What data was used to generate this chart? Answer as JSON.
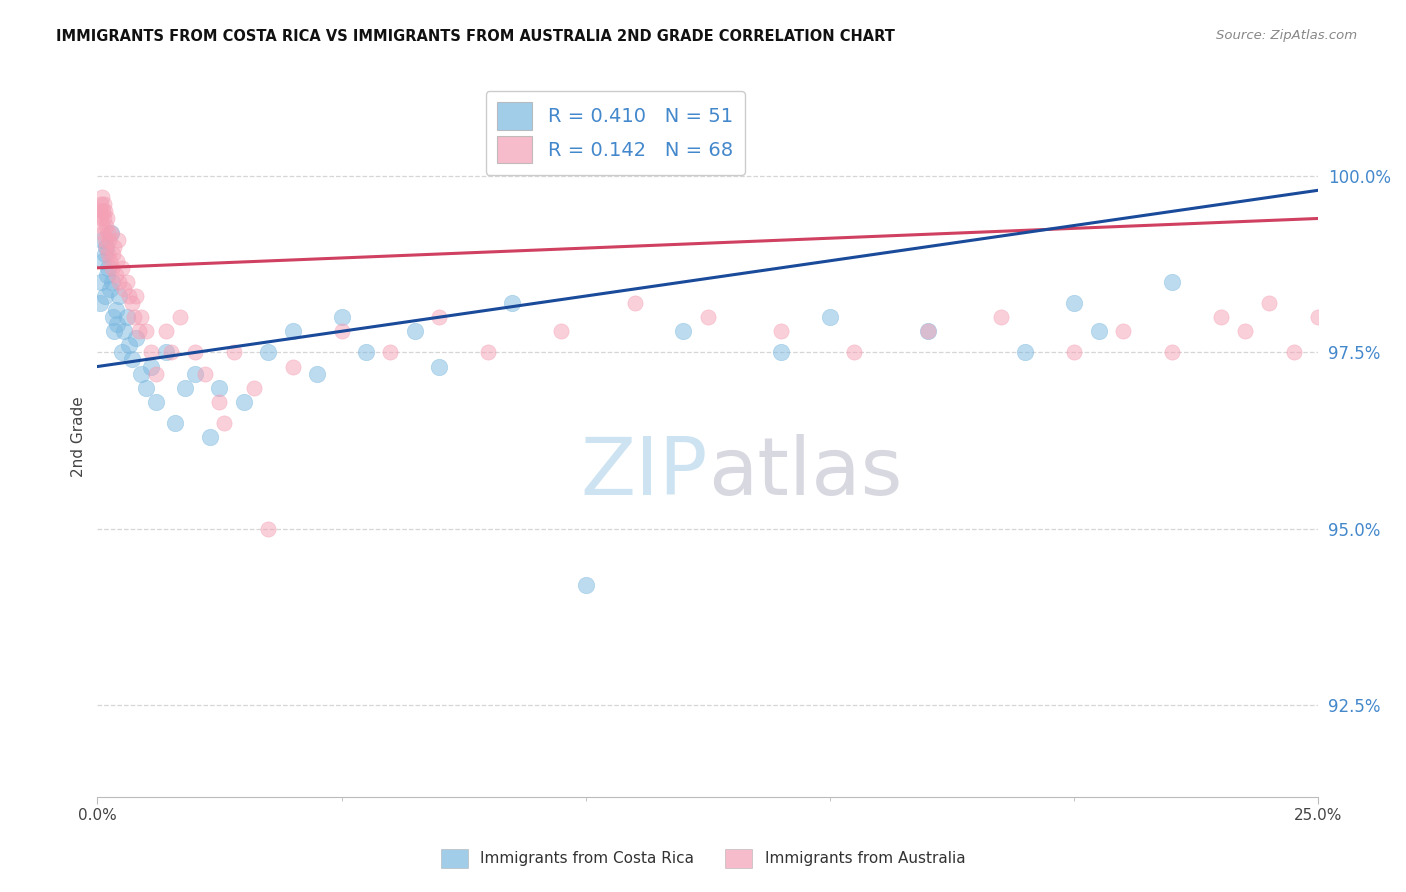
{
  "title": "IMMIGRANTS FROM COSTA RICA VS IMMIGRANTS FROM AUSTRALIA 2ND GRADE CORRELATION CHART",
  "source": "Source: ZipAtlas.com",
  "ylabel": "2nd Grade",
  "yticks": [
    92.5,
    95.0,
    97.5,
    100.0
  ],
  "ytick_labels": [
    "92.5%",
    "95.0%",
    "97.5%",
    "100.0%"
  ],
  "xmin": 0.0,
  "xmax": 25.0,
  "ymin": 91.2,
  "ymax": 101.4,
  "legend_r_blue": "R = 0.410",
  "legend_n_blue": "N = 51",
  "legend_r_pink": "R = 0.142",
  "legend_n_pink": "N = 68",
  "legend_label_blue": "Immigrants from Costa Rica",
  "legend_label_pink": "Immigrants from Australia",
  "blue_color": "#7ab8e0",
  "pink_color": "#f4a0b5",
  "trendline_blue": "#1a4a9a",
  "trendline_pink": "#d04060",
  "axis_label_color": "#4488cc",
  "title_color": "#111111",
  "source_color": "#888888",
  "grid_color": "#cccccc",
  "cr_x": [
    0.05,
    0.08,
    0.1,
    0.12,
    0.15,
    0.15,
    0.18,
    0.2,
    0.22,
    0.25,
    0.28,
    0.3,
    0.32,
    0.35,
    0.38,
    0.4,
    0.45,
    0.5,
    0.55,
    0.6,
    0.65,
    0.7,
    0.8,
    0.9,
    1.0,
    1.1,
    1.2,
    1.4,
    1.6,
    1.8,
    2.0,
    2.3,
    2.5,
    3.0,
    3.5,
    4.0,
    4.5,
    5.0,
    5.5,
    6.5,
    7.0,
    8.5,
    10.0,
    12.0,
    14.0,
    15.0,
    17.0,
    19.0,
    20.0,
    20.5,
    22.0
  ],
  "cr_y": [
    98.2,
    98.5,
    99.1,
    98.8,
    98.9,
    98.3,
    99.0,
    98.6,
    98.7,
    98.4,
    99.2,
    98.5,
    98.0,
    97.8,
    98.1,
    97.9,
    98.3,
    97.5,
    97.8,
    98.0,
    97.6,
    97.4,
    97.7,
    97.2,
    97.0,
    97.3,
    96.8,
    97.5,
    96.5,
    97.0,
    97.2,
    96.3,
    97.0,
    96.8,
    97.5,
    97.8,
    97.2,
    98.0,
    97.5,
    97.8,
    97.3,
    98.2,
    94.2,
    97.8,
    97.5,
    98.0,
    97.8,
    97.5,
    98.2,
    97.8,
    98.5
  ],
  "au_x": [
    0.05,
    0.07,
    0.08,
    0.09,
    0.1,
    0.11,
    0.12,
    0.13,
    0.14,
    0.15,
    0.16,
    0.17,
    0.18,
    0.2,
    0.21,
    0.22,
    0.23,
    0.25,
    0.27,
    0.3,
    0.32,
    0.35,
    0.38,
    0.4,
    0.42,
    0.45,
    0.5,
    0.55,
    0.6,
    0.65,
    0.7,
    0.75,
    0.8,
    0.85,
    0.9,
    1.0,
    1.1,
    1.2,
    1.4,
    1.5,
    1.7,
    2.0,
    2.2,
    2.5,
    2.8,
    3.2,
    4.0,
    5.0,
    6.0,
    7.0,
    8.0,
    9.5,
    11.0,
    12.5,
    14.0,
    15.5,
    17.0,
    18.5,
    20.0,
    21.0,
    22.0,
    23.0,
    23.5,
    24.0,
    24.5,
    25.0,
    2.6,
    3.5
  ],
  "au_y": [
    99.5,
    99.6,
    99.4,
    99.7,
    99.3,
    99.5,
    99.2,
    99.6,
    99.4,
    99.1,
    99.5,
    99.3,
    99.0,
    99.4,
    99.2,
    98.9,
    99.1,
    98.8,
    99.2,
    98.7,
    98.9,
    99.0,
    98.6,
    98.8,
    99.1,
    98.5,
    98.7,
    98.4,
    98.5,
    98.3,
    98.2,
    98.0,
    98.3,
    97.8,
    98.0,
    97.8,
    97.5,
    97.2,
    97.8,
    97.5,
    98.0,
    97.5,
    97.2,
    96.8,
    97.5,
    97.0,
    97.3,
    97.8,
    97.5,
    98.0,
    97.5,
    97.8,
    98.2,
    98.0,
    97.8,
    97.5,
    97.8,
    98.0,
    97.5,
    97.8,
    97.5,
    98.0,
    97.8,
    98.2,
    97.5,
    98.0,
    96.5,
    95.0
  ]
}
